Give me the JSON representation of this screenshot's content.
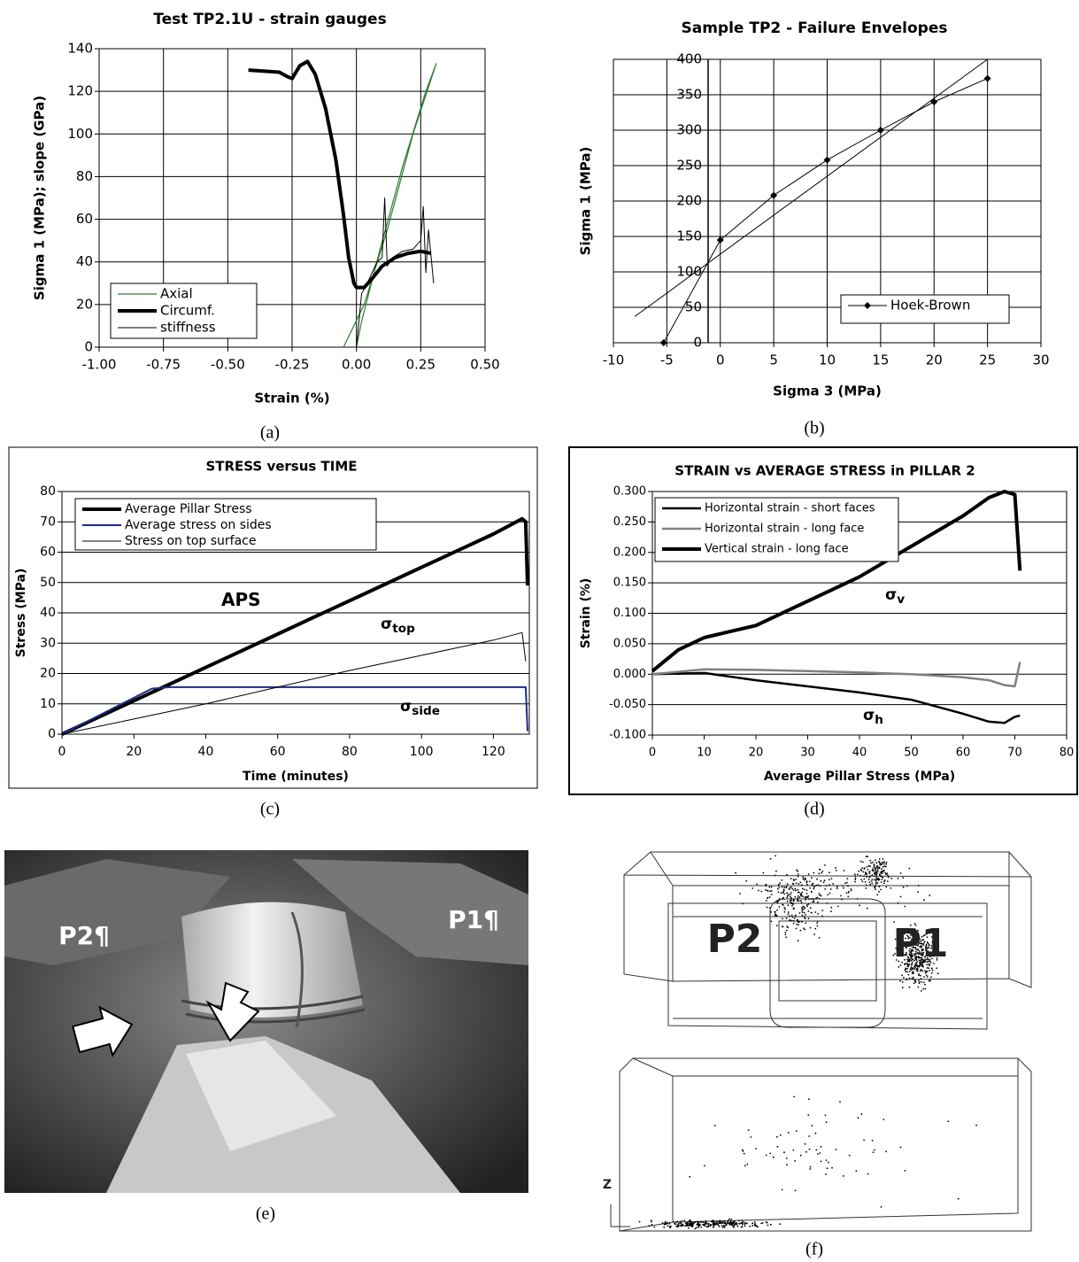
{
  "chart_data": [
    {
      "type": "line",
      "title": "Test TP2.1U - strain gauges",
      "x_label": "Strain (%)",
      "y_label": "Sigma 1 (MPa);  slope (GPa)",
      "xlim": [
        -1,
        0.5
      ],
      "xticks": [
        {
          "value": -1,
          "label": "-1.00"
        },
        -0.75,
        {
          "value": -0.5,
          "label": "-0.50"
        },
        -0.25,
        {
          "value": 0,
          "label": "0.00"
        },
        0.25,
        {
          "value": 0.5,
          "label": "0.50"
        }
      ],
      "ylim": [
        0,
        140
      ],
      "yticks": [
        0,
        20,
        40,
        60,
        80,
        100,
        120,
        140
      ],
      "grid": true,
      "xgrid": true,
      "legend": "lower left",
      "series": [
        {
          "name": "Axial",
          "color": "#2e7d32",
          "width": 1.2,
          "x": [
            -0.05,
            0.03,
            0.12,
            0.22,
            0.31,
            0.27,
            0.18,
            0.09,
            0.02,
            0
          ],
          "values": [
            0,
            20,
            55,
            100,
            133,
            120,
            85,
            45,
            12,
            0
          ]
        },
        {
          "name": "Circumf.",
          "color": "#000000",
          "width": 4,
          "x": [
            -0.42,
            -0.3,
            -0.27,
            -0.25,
            -0.22,
            -0.19,
            -0.16,
            -0.12,
            -0.08,
            -0.05,
            -0.03,
            -0.01,
            0,
            0.03,
            0.06,
            0.1,
            0.15,
            0.2,
            0.25,
            0.29
          ],
          "values": [
            130,
            129,
            127,
            126,
            132,
            134,
            128,
            112,
            88,
            62,
            42,
            30,
            28,
            28,
            32,
            38,
            42,
            44,
            45,
            44
          ]
        },
        {
          "name": "stiffness",
          "color": "#000000",
          "width": 1,
          "x": [
            0,
            0.02,
            0.05,
            0.08,
            0.1,
            0.11,
            0.12,
            0.14,
            0.18,
            0.22,
            0.25,
            0.26,
            0.27,
            0.28,
            0.3
          ],
          "values": [
            0,
            25,
            32,
            40,
            42,
            70,
            38,
            42,
            45,
            46,
            50,
            66,
            35,
            55,
            30
          ]
        }
      ]
    },
    {
      "type": "line",
      "title": "Sample TP2 - Failure Envelopes",
      "x_label": "Sigma 3 (MPa)",
      "y_label": "Sigma 1 (MPa)",
      "xlim": [
        -10,
        30
      ],
      "xticks": [
        -10,
        -5,
        0,
        5,
        10,
        15,
        20,
        25,
        30
      ],
      "ylim": [
        0,
        400
      ],
      "yticks": [
        0,
        50,
        100,
        150,
        200,
        250,
        300,
        350,
        400
      ],
      "grid": true,
      "xgrid": true,
      "legend": "lower right",
      "series": [
        {
          "name": "Hoek-Brown",
          "color": "#000000",
          "width": 1,
          "marker": "diamond",
          "x": [
            -5.3,
            0,
            5,
            10,
            15,
            20,
            25
          ],
          "values": [
            0,
            145,
            208,
            258,
            300,
            340,
            373
          ]
        },
        {
          "color": "#000000",
          "width": 1,
          "x": [
            -8,
            25
          ],
          "values": [
            37,
            400
          ]
        }
      ]
    },
    {
      "type": "line",
      "title": "STRESS versus TIME",
      "x_label": "Time (minutes)",
      "y_label": "Stress (MPa)",
      "xlim": [
        0,
        130
      ],
      "xticks": [
        0,
        20,
        40,
        60,
        80,
        100,
        120
      ],
      "ylim": [
        0,
        80
      ],
      "yticks": [
        0,
        10,
        20,
        30,
        40,
        50,
        60,
        70,
        80
      ],
      "grid": true,
      "legend": "upper left",
      "series": [
        {
          "name": "Average Pillar Stress",
          "color": "#000000",
          "width": 4,
          "x": [
            0,
            10,
            20,
            30,
            40,
            50,
            60,
            70,
            80,
            90,
            100,
            110,
            120,
            128,
            129,
            129.5
          ],
          "values": [
            0,
            5.5,
            11,
            16.5,
            22,
            27.5,
            33,
            38.5,
            44,
            49.5,
            55,
            60.5,
            66,
            71,
            70,
            49
          ]
        },
        {
          "name": "Average stress on sides",
          "color": "#1f2a8a",
          "width": 2,
          "x": [
            0,
            10,
            20,
            25,
            30,
            60,
            100,
            129,
            129.5
          ],
          "values": [
            0,
            6,
            12,
            15,
            15.5,
            15.5,
            15.5,
            15.5,
            1
          ]
        },
        {
          "name": "Stress on top surface",
          "color": "#000000",
          "width": 1,
          "x": [
            0,
            20,
            40,
            60,
            80,
            100,
            120,
            128,
            129
          ],
          "values": [
            0,
            5,
            10,
            15.5,
            21,
            26,
            31,
            33.5,
            24
          ]
        }
      ],
      "annotations": [
        {
          "text": "APS"
        },
        {
          "text": "σ",
          "sub": "top"
        },
        {
          "text": "σ",
          "sub": "side"
        }
      ]
    },
    {
      "type": "line",
      "title": "STRAIN vs AVERAGE STRESS in PILLAR 2",
      "x_label": "Average Pillar Stress (MPa)",
      "y_label": "Strain (%)",
      "xlim": [
        0,
        80
      ],
      "xticks": [
        0,
        10,
        20,
        30,
        40,
        50,
        60,
        70,
        80
      ],
      "ylim": [
        -0.1,
        0.3
      ],
      "yticks": [
        {
          "value": -0.1,
          "label": "-0.100"
        },
        {
          "value": -0.05,
          "label": "-0.050"
        },
        {
          "value": 0,
          "label": "0.000"
        },
        {
          "value": 0.05,
          "label": "0.050"
        },
        {
          "value": 0.1,
          "label": "0.100"
        },
        {
          "value": 0.15,
          "label": "0.150"
        },
        {
          "value": 0.2,
          "label": "0.200"
        },
        {
          "value": 0.25,
          "label": "0.250"
        },
        {
          "value": 0.3,
          "label": "0.300"
        }
      ],
      "grid": true,
      "legend": "upper left",
      "series": [
        {
          "name": "Horizontal strain - short faces",
          "color": "#000000",
          "width": 2.5,
          "x": [
            0,
            10,
            20,
            30,
            40,
            50,
            60,
            65,
            68,
            70,
            71
          ],
          "values": [
            0,
            0.002,
            -0.01,
            -0.02,
            -0.03,
            -0.042,
            -0.065,
            -0.078,
            -0.08,
            -0.07,
            -0.068
          ]
        },
        {
          "name": "Horizontal strain - long face",
          "color": "#808080",
          "width": 2.5,
          "x": [
            0,
            10,
            20,
            30,
            40,
            50,
            60,
            65,
            68,
            70,
            71
          ],
          "values": [
            0,
            0.008,
            0.007,
            0.005,
            0.003,
            0,
            -0.005,
            -0.01,
            -0.018,
            -0.02,
            0.02
          ]
        },
        {
          "name": "Vertical strain - long face",
          "color": "#000000",
          "width": 4,
          "x": [
            0,
            5,
            10,
            15,
            20,
            30,
            40,
            50,
            60,
            65,
            68,
            70,
            71
          ],
          "values": [
            0.005,
            0.04,
            0.06,
            0.07,
            0.08,
            0.12,
            0.16,
            0.21,
            0.26,
            0.29,
            0.3,
            0.295,
            0.17
          ]
        }
      ],
      "annotations": [
        {
          "text": "σ",
          "sub": "v"
        },
        {
          "text": "σ",
          "sub": "h"
        }
      ]
    }
  ],
  "captions": [
    "(a)",
    "(b)",
    "(c)",
    "(d)",
    "(e)",
    "(f)"
  ],
  "photo": {
    "labels": [
      "P2¶",
      "P1¶"
    ]
  },
  "model": {
    "labels": [
      "P2",
      "P1",
      "Z"
    ]
  }
}
